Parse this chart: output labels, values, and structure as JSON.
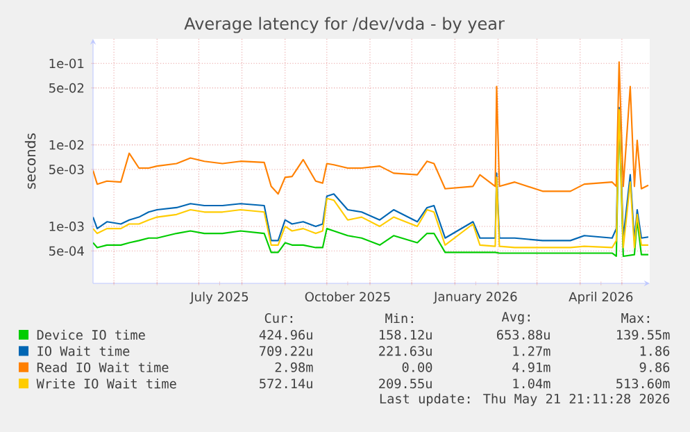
{
  "chart_data": {
    "type": "line",
    "title": "Average latency for /dev/vda - by year",
    "ylabel": "seconds",
    "log": "y",
    "grid": true,
    "legend": "bottom",
    "xlim": [
      "2025-04-16",
      "2026-05-21"
    ],
    "ylim": [
      0.0002,
      0.2
    ],
    "xticks": [
      {
        "value": "2025-05-01",
        "label": null
      },
      {
        "value": "2025-06-01",
        "label": null
      },
      {
        "value": "2025-07-01",
        "label": null
      },
      {
        "value": "2025-07-16",
        "label": "July 2025"
      },
      {
        "value": "2025-08-01",
        "label": null
      },
      {
        "value": "2025-09-01",
        "label": null
      },
      {
        "value": "2025-10-01",
        "label": null
      },
      {
        "value": "2025-10-16",
        "label": "October 2025"
      },
      {
        "value": "2025-11-01",
        "label": null
      },
      {
        "value": "2025-12-01",
        "label": null
      },
      {
        "value": "2026-01-01",
        "label": null
      },
      {
        "value": "2026-01-16",
        "label": "January 2026"
      },
      {
        "value": "2026-02-01",
        "label": null
      },
      {
        "value": "2026-03-01",
        "label": null
      },
      {
        "value": "2026-04-01",
        "label": null
      },
      {
        "value": "2026-04-16",
        "label": "April 2026"
      },
      {
        "value": "2026-05-01",
        "label": null
      }
    ],
    "yticks": [
      {
        "value": 0.0005,
        "label": "5e-04"
      },
      {
        "value": 0.001,
        "label": "1e-03"
      },
      {
        "value": 0.005,
        "label": "5e-03"
      },
      {
        "value": 0.01,
        "label": "1e-02"
      },
      {
        "value": 0.05,
        "label": "5e-02"
      },
      {
        "value": 0.1,
        "label": "1e-01"
      }
    ],
    "x": [
      "2025-04-16",
      "2025-04-19",
      "2025-04-26",
      "2025-05-06",
      "2025-05-12",
      "2025-05-19",
      "2025-05-26",
      "2025-06-01",
      "2025-06-15",
      "2025-06-25",
      "2025-07-05",
      "2025-07-18",
      "2025-07-31",
      "2025-08-17",
      "2025-08-22",
      "2025-08-27",
      "2025-09-01",
      "2025-09-06",
      "2025-09-14",
      "2025-09-23",
      "2025-09-28",
      "2025-10-01",
      "2025-10-06",
      "2025-10-16",
      "2025-10-26",
      "2025-11-08",
      "2025-11-18",
      "2025-12-05",
      "2025-12-12",
      "2025-12-17",
      "2025-12-25",
      "2026-01-14",
      "2026-01-19",
      "2026-01-30",
      "2026-01-31",
      "2026-02-02",
      "2026-02-13",
      "2026-03-05",
      "2026-03-25",
      "2026-04-04",
      "2026-04-24",
      "2026-04-27",
      "2026-04-29",
      "2026-05-02",
      "2026-05-07",
      "2026-05-10",
      "2026-05-12",
      "2026-05-15",
      "2026-05-20"
    ],
    "series": [
      {
        "name": "Device IO time",
        "color": "#00cc00",
        "values": [
          0.00063,
          0.00055,
          0.00059,
          0.00059,
          0.00063,
          0.00067,
          0.00072,
          0.00072,
          0.00082,
          0.00088,
          0.00082,
          0.00082,
          0.00088,
          0.00082,
          0.00048,
          0.00048,
          0.00063,
          0.00059,
          0.00059,
          0.00055,
          0.00055,
          0.00094,
          0.00088,
          0.00077,
          0.00072,
          0.00059,
          0.00077,
          0.00063,
          0.00082,
          0.00082,
          0.00048,
          0.00048,
          0.00048,
          0.00048,
          null,
          0.00047,
          0.00047,
          0.00047,
          0.00047,
          0.00047,
          0.00047,
          0.00043,
          0.025,
          0.00043,
          null,
          0.00045,
          0.0012,
          0.00045,
          0.00045
        ]
      },
      {
        "name": "IO Wait time",
        "color": "#0066b3",
        "values": [
          0.0013,
          0.00094,
          0.00114,
          0.00107,
          0.0012,
          0.0013,
          0.0015,
          0.0016,
          0.0017,
          0.0019,
          0.0018,
          0.0018,
          0.0019,
          0.0018,
          0.00067,
          0.00067,
          0.0012,
          0.00107,
          0.00114,
          0.001,
          0.00107,
          0.00235,
          0.0025,
          0.0016,
          0.0015,
          0.0012,
          0.0016,
          0.00114,
          0.0017,
          0.0018,
          0.00072,
          0.00114,
          0.00072,
          0.00072,
          0.0045,
          0.00072,
          0.00072,
          0.00067,
          0.00067,
          0.00077,
          0.00072,
          0.00094,
          0.0287,
          0.00072,
          0.0043,
          0.00067,
          0.0016,
          0.00072,
          0.00074
        ]
      },
      {
        "name": "Read IO Wait time",
        "color": "#ff8000",
        "values": [
          0.00485,
          0.0033,
          0.0036,
          0.0035,
          0.0079,
          0.0052,
          0.0052,
          0.0055,
          0.0059,
          0.0069,
          0.0063,
          0.0059,
          0.0063,
          0.0061,
          0.0031,
          0.0025,
          0.004,
          0.0041,
          0.0066,
          0.0036,
          0.0034,
          0.0059,
          0.0057,
          0.0052,
          0.0052,
          0.0055,
          0.0045,
          0.0043,
          0.0063,
          0.0059,
          0.0029,
          0.0031,
          0.0043,
          0.0031,
          0.052,
          0.0031,
          0.0035,
          0.0027,
          0.0027,
          0.0033,
          0.0035,
          0.0031,
          0.104,
          0.0031,
          0.052,
          0.0031,
          0.0114,
          0.0029,
          0.0032
        ]
      },
      {
        "name": "Write IO Wait time",
        "color": "#ffcc00",
        "values": [
          0.00094,
          0.00082,
          0.00094,
          0.00094,
          0.00107,
          0.00107,
          0.0012,
          0.0013,
          0.0014,
          0.0016,
          0.0015,
          0.0015,
          0.0016,
          0.0015,
          0.00059,
          0.00059,
          0.001,
          0.00088,
          0.00094,
          0.00082,
          0.00088,
          0.0022,
          0.0021,
          0.0012,
          0.0013,
          0.001,
          0.0013,
          0.001,
          0.0016,
          0.0015,
          0.00059,
          0.00107,
          0.00059,
          0.00057,
          0.004,
          0.00057,
          0.00055,
          0.00055,
          0.00055,
          0.00057,
          0.00055,
          0.00067,
          0.027,
          0.00055,
          0.0035,
          0.00055,
          0.0014,
          0.00059,
          0.00059
        ]
      }
    ],
    "annotations": [
      "Cur:",
      "Min:",
      "Avg:",
      "Max:",
      "424.96u",
      "158.12u",
      "653.88u",
      "139.55m",
      "709.22u",
      "221.63u",
      "1.27m",
      "1.86",
      "2.98m",
      "0.00",
      "4.91m",
      "9.86",
      "572.14u",
      "209.55u",
      "1.04m",
      "513.60m",
      "Last update: Thu May 21 21:11:28 2026"
    ]
  }
}
